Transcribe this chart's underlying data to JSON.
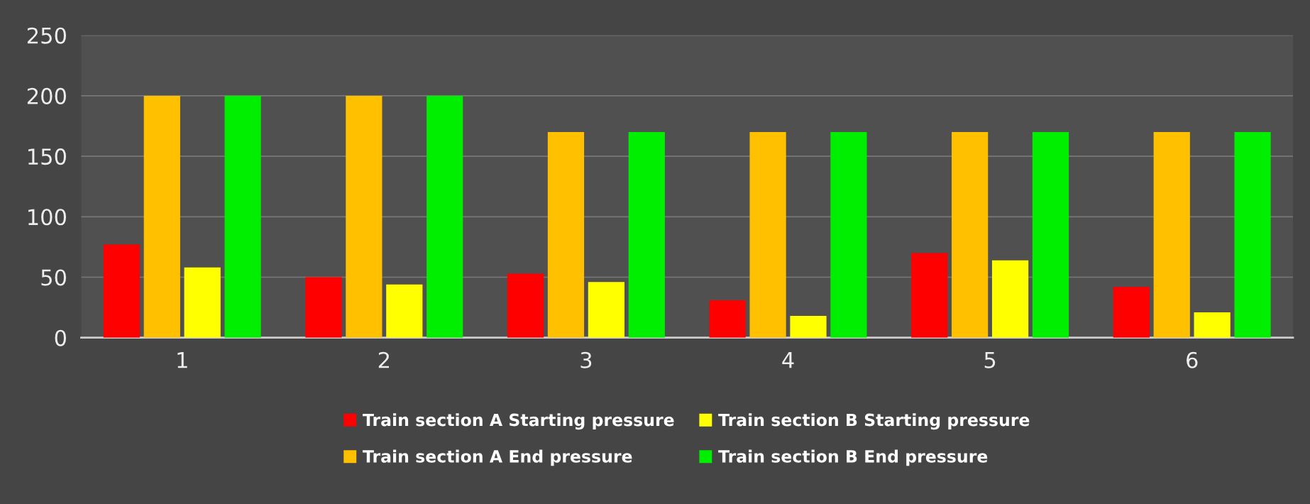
{
  "chart_data": {
    "type": "bar",
    "categories": [
      "1",
      "2",
      "3",
      "4",
      "5",
      "6"
    ],
    "series": [
      {
        "name": "Train section A Starting pressure",
        "color": "#ff0000",
        "values": [
          77,
          50,
          53,
          31,
          70,
          42
        ]
      },
      {
        "name": "Train section A End pressure",
        "color": "#ffc000",
        "values": [
          200,
          200,
          170,
          170,
          170,
          170
        ]
      },
      {
        "name": "Train section B Starting pressure",
        "color": "#ffff00",
        "values": [
          58,
          44,
          46,
          18,
          64,
          21
        ]
      },
      {
        "name": "Train section B End pressure",
        "color": "#00ee00",
        "values": [
          200,
          200,
          170,
          170,
          170,
          170
        ]
      }
    ],
    "ylim": [
      0,
      250
    ],
    "yticks": [
      0,
      50,
      100,
      150,
      200,
      250
    ],
    "grid": "y",
    "legend": "bottom"
  }
}
